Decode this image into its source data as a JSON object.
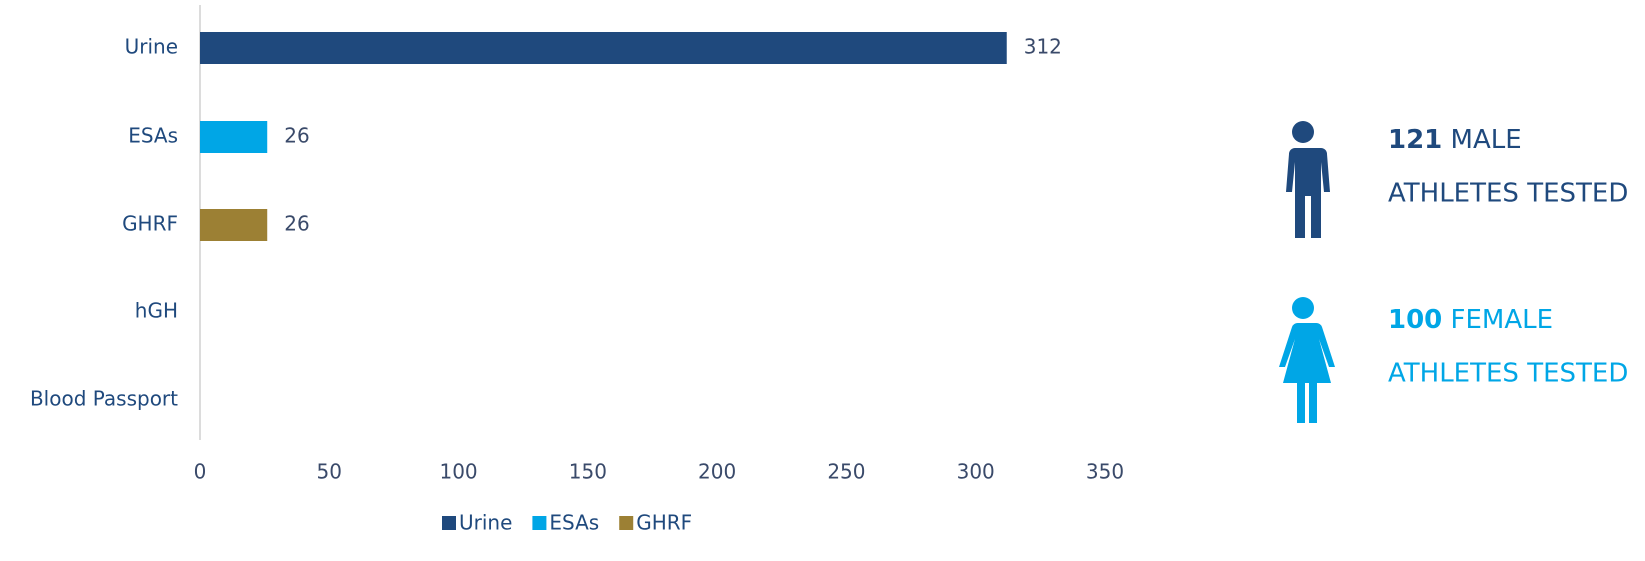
{
  "chart_data": {
    "type": "bar",
    "orientation": "horizontal",
    "categories": [
      "Urine",
      "ESAs",
      "GHRF",
      "hGH",
      "Blood Passport"
    ],
    "series": [
      {
        "name": "Urine",
        "color": "#1f497d",
        "values": [
          312,
          null,
          null,
          null,
          null
        ]
      },
      {
        "name": "ESAs",
        "color": "#00a6e6",
        "values": [
          null,
          26,
          null,
          null,
          null
        ]
      },
      {
        "name": "GHRF",
        "color": "#9c8034",
        "values": [
          null,
          null,
          26,
          null,
          null
        ]
      }
    ],
    "xlim": [
      0,
      350
    ],
    "xticks": [
      0,
      50,
      100,
      150,
      200,
      250,
      300,
      350
    ],
    "legend": "bottom",
    "stats": [
      {
        "number": 121,
        "label": "MALE",
        "sublabel": "ATHLETES TESTED",
        "color": "#1f497d"
      },
      {
        "number": 100,
        "label": "FEMALE",
        "sublabel": "ATHLETES TESTED",
        "color": "#00a6e6"
      }
    ]
  }
}
